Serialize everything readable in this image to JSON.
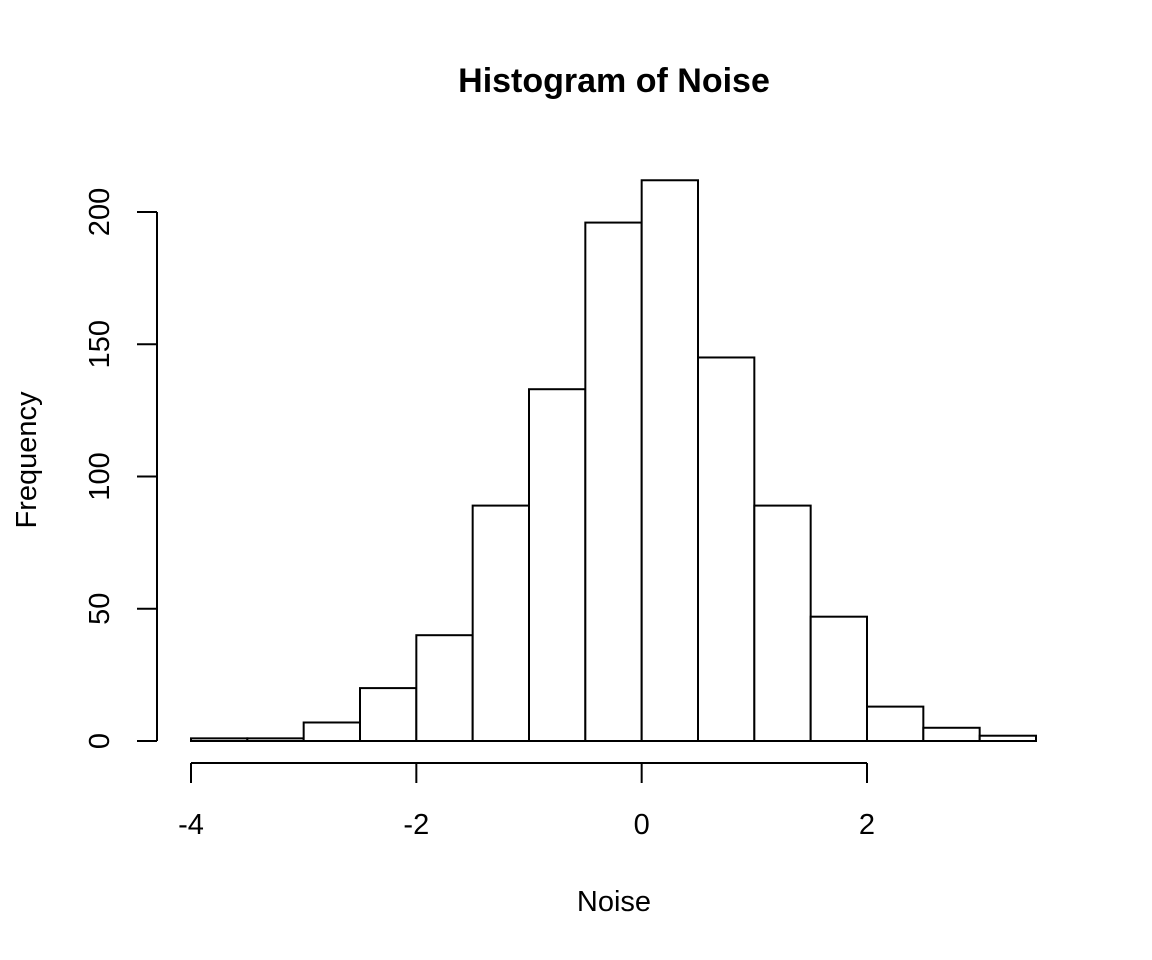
{
  "chart_data": {
    "type": "bar",
    "subtype": "histogram",
    "title": "Histogram of Noise",
    "xlabel": "Noise",
    "ylabel": "Frequency",
    "bins": [
      {
        "start": -4.0,
        "end": -3.5,
        "count": 1
      },
      {
        "start": -3.5,
        "end": -3.0,
        "count": 1
      },
      {
        "start": -3.0,
        "end": -2.5,
        "count": 7
      },
      {
        "start": -2.5,
        "end": -2.0,
        "count": 20
      },
      {
        "start": -2.0,
        "end": -1.5,
        "count": 40
      },
      {
        "start": -1.5,
        "end": -1.0,
        "count": 89
      },
      {
        "start": -1.0,
        "end": -0.5,
        "count": 133
      },
      {
        "start": -0.5,
        "end": 0.0,
        "count": 196
      },
      {
        "start": 0.0,
        "end": 0.5,
        "count": 212
      },
      {
        "start": 0.5,
        "end": 1.0,
        "count": 145
      },
      {
        "start": 1.0,
        "end": 1.5,
        "count": 89
      },
      {
        "start": 1.5,
        "end": 2.0,
        "count": 47
      },
      {
        "start": 2.0,
        "end": 2.5,
        "count": 13
      },
      {
        "start": 2.5,
        "end": 3.0,
        "count": 5
      },
      {
        "start": 3.0,
        "end": 3.5,
        "count": 2
      }
    ],
    "xlim": [
      -4,
      3.5
    ],
    "ylim": [
      0,
      212
    ],
    "x_ticks": [
      {
        "value": -4,
        "label": "-4"
      },
      {
        "value": -2,
        "label": "-2"
      },
      {
        "value": 0,
        "label": "0"
      },
      {
        "value": 2,
        "label": "2"
      }
    ],
    "y_ticks": [
      {
        "value": 0,
        "label": "0"
      },
      {
        "value": 50,
        "label": "50"
      },
      {
        "value": 100,
        "label": "100"
      },
      {
        "value": 150,
        "label": "150"
      },
      {
        "value": 200,
        "label": "200"
      }
    ],
    "grid": false,
    "colors": {
      "bar_fill": "#ffffff",
      "bar_stroke": "#000000",
      "axis": "#000000"
    }
  }
}
